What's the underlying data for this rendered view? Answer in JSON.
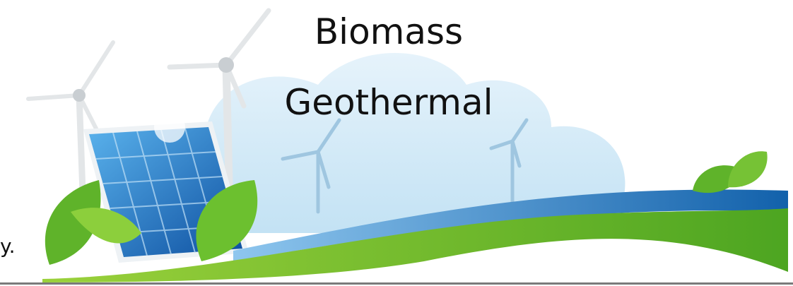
{
  "banner": {
    "lines": [
      "Biomass",
      "Geothermal"
    ]
  },
  "side_text": "y."
}
